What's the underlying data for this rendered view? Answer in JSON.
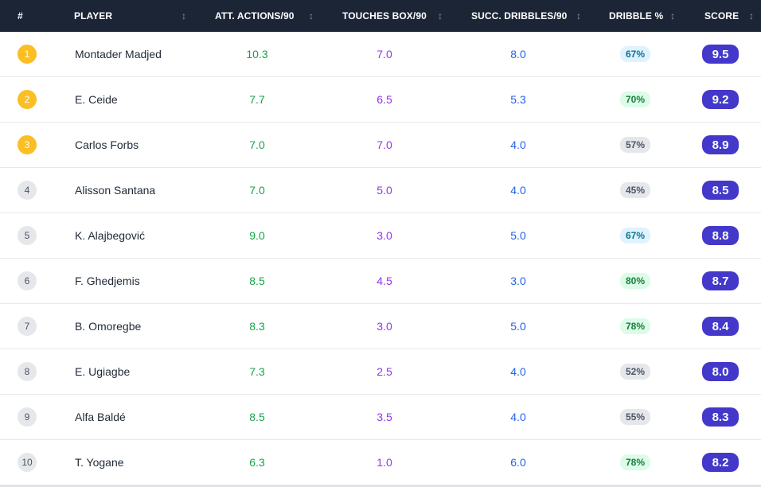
{
  "columns": {
    "rank": "#",
    "player": "PLAYER",
    "att": "ATT. ACTIONS/90",
    "touches": "TOUCHES BOX/90",
    "dribbles": "SUCC. DRIBBLES/90",
    "pct": "DRIBBLE %",
    "score": "SCORE",
    "sort_glyph": "↕"
  },
  "colors": {
    "header_bg": "#1c2536",
    "gold_rank": "#fbbf24",
    "att_green": "#16a34a",
    "touches_purple": "#9333ea",
    "dribbles_blue": "#2563eb",
    "score_indigo": "#4338ca"
  },
  "rows": [
    {
      "rank": "1",
      "player": "Montader Madjed",
      "att": "10.3",
      "touches": "7.0",
      "dribbles": "8.0",
      "pct": "67%",
      "pct_tone": "blue",
      "score": "9.5"
    },
    {
      "rank": "2",
      "player": "E. Ceide",
      "att": "7.7",
      "touches": "6.5",
      "dribbles": "5.3",
      "pct": "70%",
      "pct_tone": "green",
      "score": "9.2"
    },
    {
      "rank": "3",
      "player": "Carlos Forbs",
      "att": "7.0",
      "touches": "7.0",
      "dribbles": "4.0",
      "pct": "57%",
      "pct_tone": "gray",
      "score": "8.9"
    },
    {
      "rank": "4",
      "player": "Alisson Santana",
      "att": "7.0",
      "touches": "5.0",
      "dribbles": "4.0",
      "pct": "45%",
      "pct_tone": "gray",
      "score": "8.5"
    },
    {
      "rank": "5",
      "player": "K. Alajbegović",
      "att": "9.0",
      "touches": "3.0",
      "dribbles": "5.0",
      "pct": "67%",
      "pct_tone": "blue",
      "score": "8.8"
    },
    {
      "rank": "6",
      "player": "F. Ghedjemis",
      "att": "8.5",
      "touches": "4.5",
      "dribbles": "3.0",
      "pct": "80%",
      "pct_tone": "green",
      "score": "8.7"
    },
    {
      "rank": "7",
      "player": "B. Omoregbe",
      "att": "8.3",
      "touches": "3.0",
      "dribbles": "5.0",
      "pct": "78%",
      "pct_tone": "green",
      "score": "8.4"
    },
    {
      "rank": "8",
      "player": "E. Ugiagbe",
      "att": "7.3",
      "touches": "2.5",
      "dribbles": "4.0",
      "pct": "52%",
      "pct_tone": "gray",
      "score": "8.0"
    },
    {
      "rank": "9",
      "player": "Alfa Baldé",
      "att": "8.5",
      "touches": "3.5",
      "dribbles": "4.0",
      "pct": "55%",
      "pct_tone": "gray",
      "score": "8.3"
    },
    {
      "rank": "10",
      "player": "T. Yogane",
      "att": "6.3",
      "touches": "1.0",
      "dribbles": "6.0",
      "pct": "78%",
      "pct_tone": "green",
      "score": "8.2"
    }
  ]
}
